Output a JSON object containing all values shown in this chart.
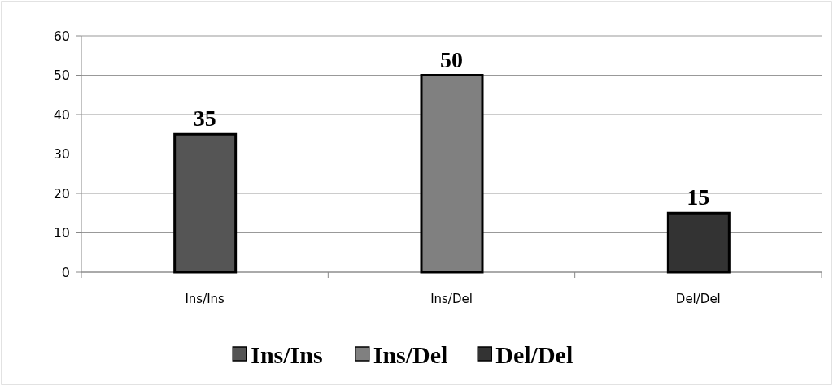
{
  "chart_data": {
    "type": "bar",
    "categories": [
      "Ins/Ins",
      "Ins/Del",
      "Del/Del"
    ],
    "stacked": true,
    "series": [
      {
        "name": "Ins/Ins",
        "color": "#555555",
        "values": [
          35,
          null,
          null
        ]
      },
      {
        "name": "Ins/Del",
        "color": "#808080",
        "values": [
          null,
          50,
          null
        ]
      },
      {
        "name": "Del/Del",
        "color": "#333333",
        "values": [
          null,
          null,
          15
        ]
      }
    ],
    "ylim": [
      0,
      60
    ],
    "yticks": [
      0,
      10,
      20,
      30,
      40,
      50,
      60
    ],
    "grid": "y",
    "data_labels": true,
    "legend": "bottom"
  }
}
